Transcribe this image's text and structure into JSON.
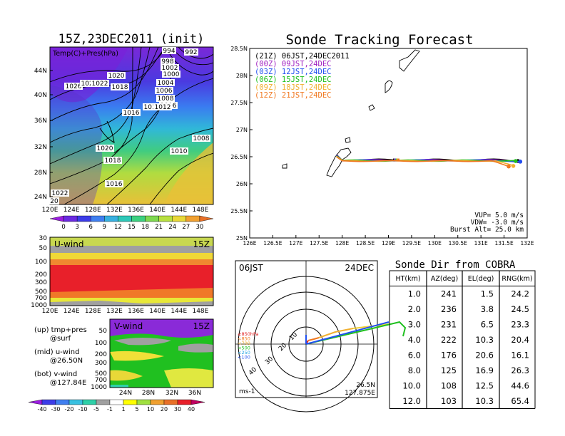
{
  "left": {
    "title": "15Z,23DEC2011 (init)",
    "map_label": "Temp(C)+Pres(hPa)",
    "lat_ticks": [
      "44N",
      "40N",
      "36N",
      "32N",
      "28N",
      "24N"
    ],
    "lon_ticks": [
      "120E",
      "124E",
      "128E",
      "132E",
      "136E",
      "140E",
      "144E",
      "148E"
    ],
    "isobar_labels": [
      "994",
      "992",
      "998",
      "1002",
      "1000",
      "1004",
      "1006",
      "1008",
      "1006",
      "1020",
      "1026",
      "1024",
      "1022",
      "1018",
      "1016",
      "1014",
      "1012",
      "1008",
      "1010",
      "1020",
      "1018",
      "1016",
      "1022",
      "20"
    ],
    "temp_scale": [
      "0",
      "3",
      "6",
      "9",
      "12",
      "15",
      "18",
      "21",
      "24",
      "27",
      "30"
    ],
    "temp_colors": [
      "#9b1ee0",
      "#6a2ae0",
      "#3c3ce8",
      "#3f7ff0",
      "#38b0e0",
      "#2ec8b8",
      "#3cd080",
      "#7ed850",
      "#b8e040",
      "#e8d838",
      "#f0a030",
      "#e87028"
    ],
    "uwind": {
      "title": "U-wind",
      "time": "15Z",
      "p_ticks": [
        "30",
        "50",
        "100",
        "200",
        "300",
        "500",
        "700",
        "1000"
      ],
      "lon_ticks": [
        "120E",
        "124E",
        "128E",
        "132E",
        "136E",
        "140E",
        "144E",
        "148E"
      ]
    },
    "vwind": {
      "title": "V-wind",
      "time": "15Z",
      "p_ticks": [
        "50",
        "100",
        "200",
        "300",
        "500",
        "700",
        "1000"
      ],
      "lat_ticks": [
        "24N",
        "28N",
        "32N",
        "36N"
      ]
    },
    "legend_lines": [
      {
        "a": "(up) tmp+pres",
        "b": "@surf"
      },
      {
        "a": "(mid) u-wind",
        "b": "@26.50N"
      },
      {
        "a": "(bot) v-wind",
        "b": "@127.84E"
      }
    ],
    "wind_scale": [
      "-40",
      "-30",
      "-20",
      "-10",
      "-5",
      "-1",
      "1",
      "5",
      "10",
      "20",
      "30",
      "40"
    ],
    "wind_colors": [
      "#9b1ee0",
      "#3c3ce8",
      "#3f7ff0",
      "#38c0e0",
      "#2ed0a8",
      "#a0a0a0",
      "#ffffff",
      "#ffff00",
      "#a0e040",
      "#f0a030",
      "#e87028",
      "#e8202a",
      "#c00060"
    ]
  },
  "chart_data": [
    {
      "type": "line",
      "title": "Sonde Tracking Forecast",
      "xlabel": "",
      "ylabel": "",
      "xlim": [
        126,
        132
      ],
      "ylim": [
        25,
        28.5
      ],
      "x_ticks": [
        "126E",
        "126.5E",
        "127E",
        "127.5E",
        "128E",
        "128.5E",
        "129E",
        "129.5E",
        "130E",
        "130.5E",
        "131E",
        "131.5E",
        "132E"
      ],
      "y_ticks": [
        "25N",
        "25.5N",
        "26N",
        "26.5N",
        "27N",
        "27.5N",
        "28N",
        "28.5N"
      ],
      "grid": false,
      "legend_position": "top-left",
      "series": [
        {
          "name": "(21Z)  06JST,24DEC2011",
          "color": "#000000",
          "end": [
            131.8,
            26.42
          ],
          "wiggle": 0.02
        },
        {
          "name": "(00Z)  09JST,24DEC",
          "color": "#a020c0",
          "end": [
            131.85,
            26.41
          ],
          "wiggle": 0.015
        },
        {
          "name": "(03Z)  12JST,24DEC",
          "color": "#2050f0",
          "end": [
            131.85,
            26.41
          ],
          "wiggle": 0.012
        },
        {
          "name": "(06Z)  15JST,24DEC",
          "color": "#20c020",
          "end": [
            131.75,
            26.42
          ],
          "wiggle": 0.015
        },
        {
          "name": "(09Z)  18JST,24DEC",
          "color": "#f0b030",
          "end": [
            131.7,
            26.33
          ],
          "wiggle": 0.01
        },
        {
          "name": "(12Z)  21JST,24DEC",
          "color": "#f07820",
          "end": [
            131.6,
            26.32
          ],
          "wiggle": 0.01
        }
      ],
      "launch": [
        127.875,
        26.5
      ],
      "annotations": [
        "VUP=  5.0  m/s",
        "VDW=  -3.0  m/s",
        "Burst Alt=  25.0  km"
      ]
    },
    {
      "type": "table",
      "title": "Sonde Dir from COBRA",
      "columns": [
        "HT(km)",
        "AZ(deg)",
        "EL(deg)",
        "RNG(km)"
      ],
      "rows": [
        [
          "1.0",
          "241",
          "1.5",
          "24.2"
        ],
        [
          "2.0",
          "236",
          "3.8",
          "24.5"
        ],
        [
          "3.0",
          "231",
          "6.5",
          "23.3"
        ],
        [
          "4.0",
          "222",
          "10.3",
          "20.4"
        ],
        [
          "6.0",
          "176",
          "20.6",
          "16.1"
        ],
        [
          "8.0",
          "125",
          "16.9",
          "26.3"
        ],
        [
          "10.0",
          "108",
          "12.5",
          "44.6"
        ],
        [
          "12.0",
          "103",
          "10.3",
          "65.4"
        ]
      ]
    }
  ],
  "polar": {
    "time_label": "06JST",
    "date_label": "24DEC",
    "ring_labels": [
      "10",
      "20",
      "30",
      "40"
    ],
    "legend": [
      {
        "text": "≥850hPa",
        "color": "#e02020"
      },
      {
        "text": "<850",
        "color": "#f07820"
      },
      {
        "text": "<700",
        "color": "#f0b030"
      },
      {
        "text": "<500",
        "color": "#20c020"
      },
      {
        "text": "<250",
        "color": "#20a0e0"
      },
      {
        "text": "<100",
        "color": "#2050f0"
      }
    ],
    "unit": "ms-1",
    "location_lat": "26.5N",
    "location_lon": "127.875E"
  }
}
